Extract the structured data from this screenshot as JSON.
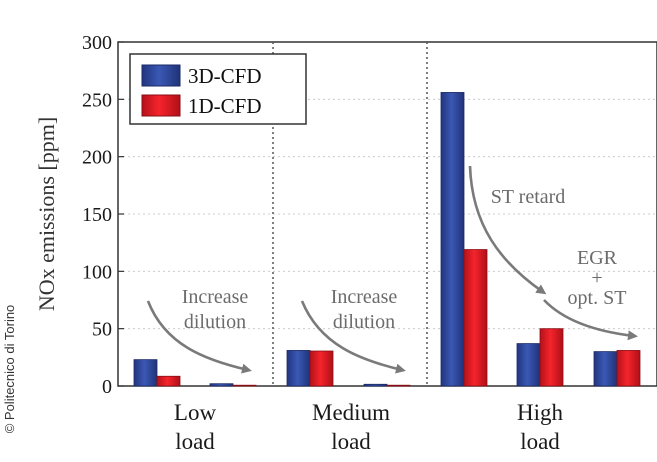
{
  "copyright": "© Politecnico di Torino",
  "colors": {
    "series_3d": "#2e479e",
    "series_1d": "#e21b23",
    "arrow": "#7a7a7a",
    "grid": "#cccccc",
    "separator": "#555555"
  },
  "chart_data": {
    "type": "bar",
    "ylabel": "NOx emissions [ppm]",
    "ylim": [
      0,
      300
    ],
    "yticks": [
      0,
      50,
      100,
      150,
      200,
      250,
      300
    ],
    "grid": "horizontal dotted",
    "legend": {
      "placement": "top-left",
      "entries": [
        "3D-CFD",
        "1D-CFD"
      ]
    },
    "groups": [
      {
        "line1": "Low",
        "line2": "load"
      },
      {
        "line1": "Medium",
        "line2": "load"
      },
      {
        "line1": "High",
        "line2": "load"
      }
    ],
    "series": [
      {
        "name": "3D-CFD",
        "values": [
          23,
          2,
          31,
          1.5,
          256,
          37,
          30
        ]
      },
      {
        "name": "1D-CFD",
        "values": [
          8.5,
          0.5,
          30.5,
          0.5,
          119,
          50,
          31
        ]
      }
    ],
    "annotations": [
      {
        "lines": [
          "Increase",
          "dilution"
        ]
      },
      {
        "lines": [
          "Increase",
          "dilution"
        ]
      },
      {
        "lines": [
          "ST retard"
        ]
      },
      {
        "lines": [
          "EGR",
          "+",
          "opt. ST"
        ]
      }
    ]
  }
}
